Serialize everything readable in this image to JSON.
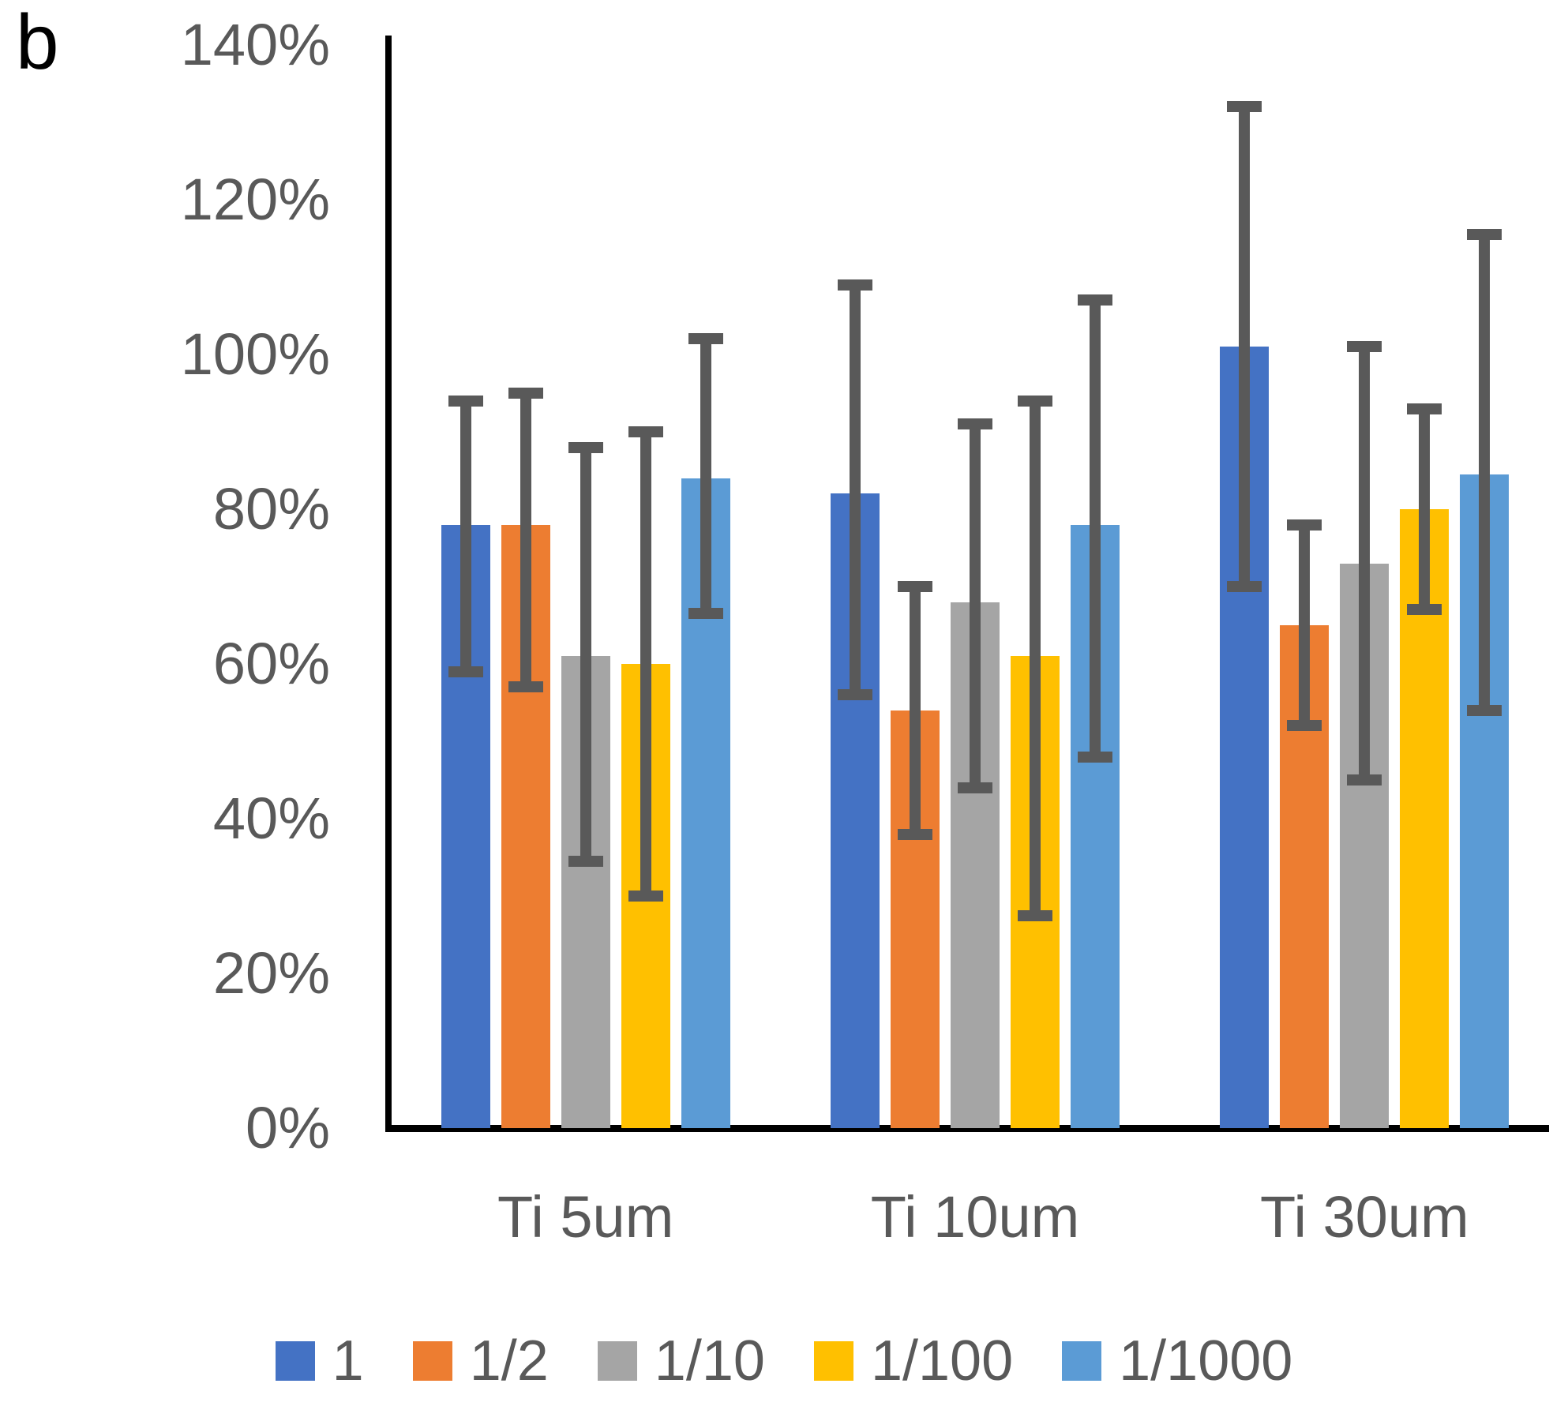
{
  "panel_label": "b",
  "chart_data": {
    "type": "bar",
    "title": "",
    "xlabel": "",
    "ylabel": "",
    "categories": [
      "Ti 5um",
      "Ti 10um",
      "Ti 30um"
    ],
    "series": [
      {
        "name": "1",
        "color": "#4472C4",
        "values": [
          78,
          82,
          101
        ],
        "error_high": [
          94,
          109,
          132
        ],
        "error_low": [
          59,
          56,
          70
        ]
      },
      {
        "name": "1/2",
        "color": "#ED7D31",
        "values": [
          78,
          54,
          65
        ],
        "error_high": [
          95,
          70,
          78
        ],
        "error_low": [
          57,
          38,
          52
        ]
      },
      {
        "name": "1/10",
        "color": "#A5A5A5",
        "values": [
          61,
          68,
          73
        ],
        "error_high": [
          88,
          91,
          101
        ],
        "error_low": [
          34.5,
          44,
          45
        ]
      },
      {
        "name": "1/100",
        "color": "#FFC000",
        "values": [
          60,
          61,
          80
        ],
        "error_high": [
          90,
          94,
          93
        ],
        "error_low": [
          30,
          27.5,
          67
        ]
      },
      {
        "name": "1/1000",
        "color": "#5B9BD5",
        "values": [
          84,
          78,
          84.5
        ],
        "error_high": [
          102,
          107,
          115.5
        ],
        "error_low": [
          66.5,
          48,
          54
        ]
      }
    ],
    "y_ticks": [
      "0%",
      "20%",
      "40%",
      "60%",
      "80%",
      "100%",
      "120%",
      "140%"
    ],
    "y_tick_step": 20,
    "ylim": [
      0,
      140
    ],
    "grid": false,
    "legend_position": "bottom",
    "error_bar_color": "#595959",
    "axis_color": "#000000",
    "text_color": "#595959"
  }
}
